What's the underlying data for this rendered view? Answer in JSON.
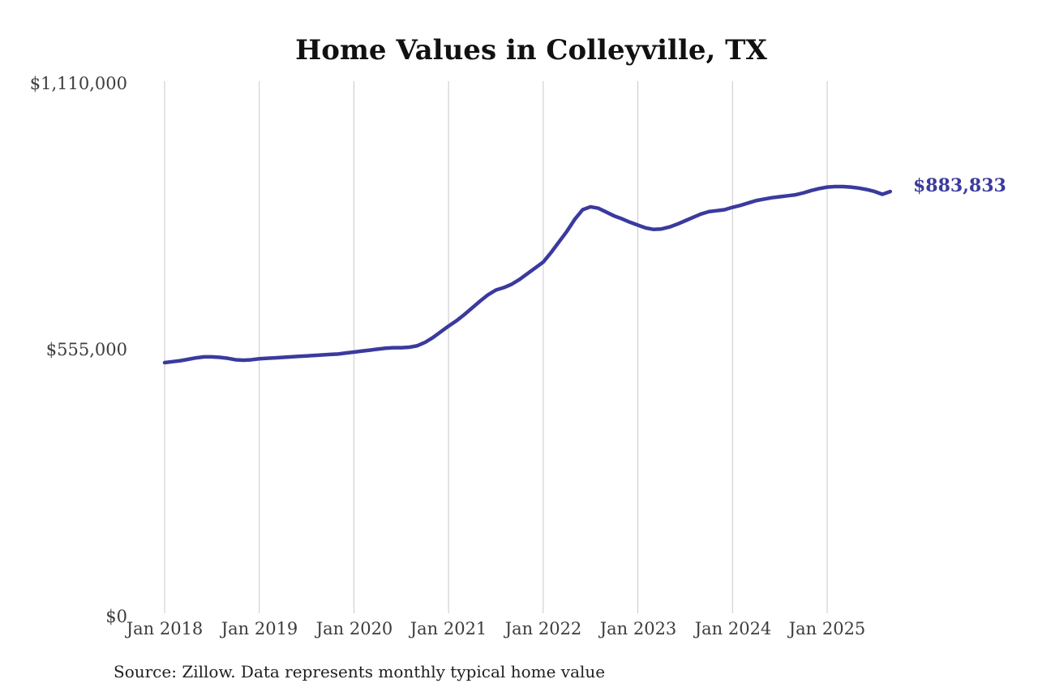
{
  "title": "Home Values in Colleyville, TX",
  "end_label": "$883,833",
  "source_note": "Source: Zillow. Data represents monthly typical home value",
  "colors": {
    "line": "#3a3a9e",
    "grid": "#c9c9c9",
    "axis_text": "#3d3d3d",
    "title_text": "#111111",
    "source_text": "#1f1f1f",
    "background": "#ffffff"
  },
  "y_axis": {
    "ticks": [
      {
        "label": "$1,110,000",
        "value": 1110000
      },
      {
        "label": "$555,000",
        "value": 555000
      },
      {
        "label": "$0",
        "value": 0
      }
    ],
    "max": 1110000
  },
  "x_axis": {
    "ticks": [
      "Jan 2018",
      "Jan 2019",
      "Jan 2020",
      "Jan 2021",
      "Jan 2022",
      "Jan 2023",
      "Jan 2024",
      "Jan 2025"
    ]
  },
  "chart_data": {
    "type": "line",
    "title": "Home Values in Colleyville, TX",
    "x_unit": "month",
    "x_start": "Jan 2018",
    "x_end": "Sep 2025",
    "xticks": [
      "Jan 2018",
      "Jan 2019",
      "Jan 2020",
      "Jan 2021",
      "Jan 2022",
      "Jan 2023",
      "Jan 2024",
      "Jan 2025"
    ],
    "ylabel": "",
    "ylim": [
      0,
      1110000
    ],
    "yticks": [
      0,
      555000,
      1110000
    ],
    "grid": "vertical-only",
    "legend": "none",
    "annotations": [
      {
        "text": "$883,833",
        "position": "line-end"
      }
    ],
    "series": [
      {
        "name": "Monthly typical home value",
        "color": "#3a3a9e",
        "last_value": 883833,
        "values": [
          528000,
          530000,
          532000,
          535000,
          538000,
          540000,
          540000,
          539000,
          537000,
          534000,
          533000,
          534000,
          536000,
          537000,
          538000,
          539000,
          540000,
          541000,
          542000,
          543000,
          544000,
          545000,
          546000,
          548000,
          550000,
          552000,
          554000,
          556000,
          558000,
          559000,
          559000,
          560000,
          563000,
          570000,
          580000,
          592000,
          604000,
          615000,
          628000,
          642000,
          656000,
          669000,
          679000,
          684000,
          691000,
          701000,
          713000,
          725000,
          737000,
          757000,
          779000,
          801000,
          826000,
          846000,
          852000,
          849000,
          841000,
          833000,
          827000,
          820000,
          814000,
          808000,
          805000,
          806000,
          810000,
          816000,
          823000,
          830000,
          837000,
          842000,
          844000,
          846000,
          851000,
          855000,
          860000,
          865000,
          868000,
          871000,
          873000,
          875000,
          877000,
          881000,
          886000,
          890000,
          893000,
          894000,
          894000,
          893000,
          891000,
          888000,
          884000,
          878000,
          883833
        ]
      }
    ]
  }
}
